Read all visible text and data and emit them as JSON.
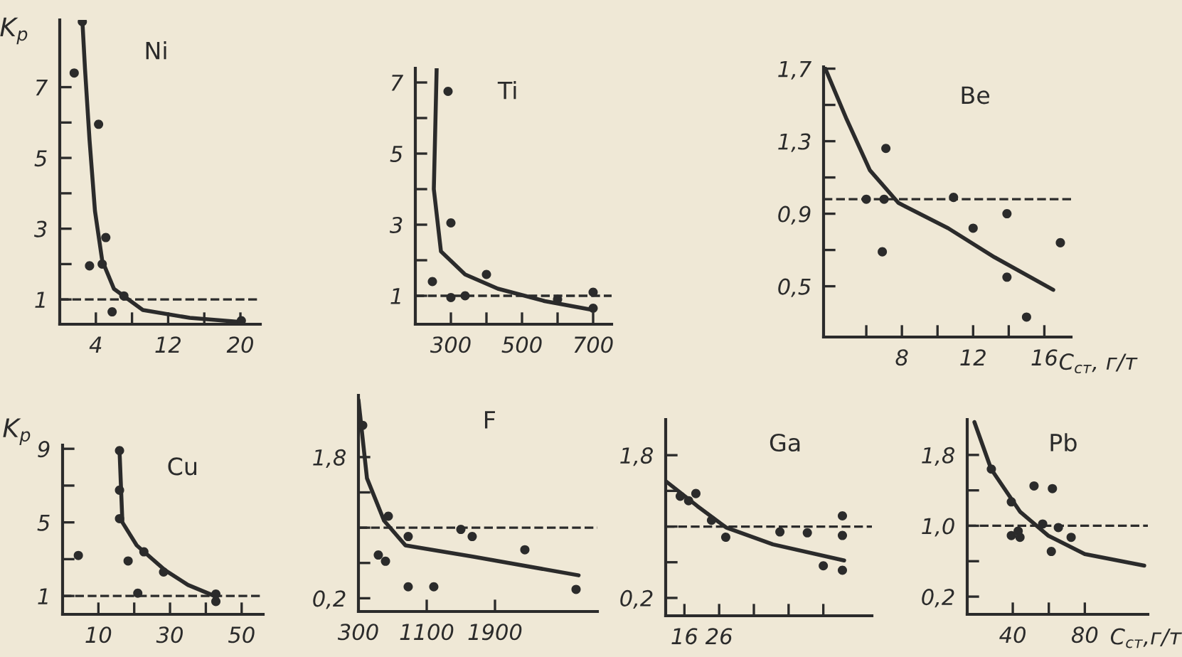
{
  "chart_data": [
    {
      "type": "scatter",
      "title": "Ni",
      "ylabel": "K$_{р}$",
      "grid": false,
      "xlim": [
        0,
        22.2
      ],
      "ylim": [
        0.3,
        8.9
      ],
      "xticks": [
        4,
        {
          "value": 8,
          "label": null
        },
        12,
        {
          "value": 16,
          "label": null
        },
        20
      ],
      "yticks": [
        1,
        {
          "value": 2,
          "label": null
        },
        3,
        {
          "value": 4,
          "label": null
        },
        5,
        {
          "value": 6,
          "label": null
        },
        7
      ],
      "series": [
        {
          "color": "#2b2b2b",
          "x": [
            1.6,
            2.5,
            4.3,
            5.1,
            3.3,
            4.7,
            7.1,
            5.8,
            20.1
          ],
          "values": [
            7.4,
            8.85,
            5.95,
            2.75,
            1.95,
            2.0,
            1.1,
            0.65,
            0.4
          ]
        },
        {
          "type": "line",
          "color": "#2b2b2b",
          "x": [
            2.5,
            2.8,
            3.3,
            3.9,
            4.7,
            6,
            9.2,
            14.4,
            20.2
          ],
          "values": [
            8.9,
            7.5,
            5.5,
            3.5,
            2.1,
            1.3,
            0.7,
            0.48,
            0.36
          ]
        }
      ],
      "ref_lines": [
        {
          "axis": "y",
          "value": 1,
          "line_style": "dashed",
          "color": "#2b2b2b"
        }
      ]
    },
    {
      "type": "scatter",
      "title": "Ti",
      "grid": false,
      "xlim": [
        200,
        752
      ],
      "ylim": [
        0.2,
        7.4
      ],
      "xticks": [
        300,
        {
          "value": 400,
          "label": null
        },
        500,
        {
          "value": 600,
          "label": null
        },
        700
      ],
      "yticks": [
        1,
        {
          "value": 2,
          "label": null
        },
        3,
        {
          "value": 4,
          "label": null
        },
        5,
        {
          "value": 6,
          "label": null
        },
        7
      ],
      "series": [
        {
          "color": "#2b2b2b",
          "x": [
            292,
            248,
            300,
            300,
            340,
            400,
            600,
            700,
            700
          ],
          "values": [
            6.75,
            1.4,
            3.05,
            0.95,
            1.0,
            1.6,
            0.9,
            1.1,
            0.65
          ]
        },
        {
          "type": "line",
          "color": "#2b2b2b",
          "x": [
            260,
            252,
            272,
            340,
            432,
            564,
            700
          ],
          "values": [
            7.4,
            4,
            2.25,
            1.6,
            1.2,
            0.85,
            0.6
          ]
        }
      ],
      "ref_lines": [
        {
          "axis": "y",
          "value": 1,
          "line_style": "dashed",
          "color": "#2b2b2b"
        }
      ]
    },
    {
      "type": "scatter",
      "title": "Be",
      "xlabel": "C$_{ст}$, г/т",
      "grid": false,
      "xlim": [
        3.6,
        17.5
      ],
      "ylim": [
        0.22,
        1.71
      ],
      "xticks": [
        {
          "value": 6,
          "label": null
        },
        8,
        {
          "value": 10,
          "label": null
        },
        12,
        {
          "value": 14,
          "label": null
        },
        16
      ],
      "yticks": [
        {
          "value": 1.7,
          "label": "1,7"
        },
        {
          "value": 1.5,
          "label": null
        },
        {
          "value": 1.3,
          "label": "1,3"
        },
        {
          "value": 1.1,
          "label": null
        },
        {
          "value": 0.9,
          "label": "0,9"
        },
        {
          "value": 0.7,
          "label": null
        },
        {
          "value": 0.5,
          "label": "0,5"
        }
      ],
      "series": [
        {
          "color": "#2b2b2b",
          "x": [
            6.0,
            7.0,
            7.1,
            6.9,
            10.9,
            12.0,
            13.9,
            13.9,
            15.0,
            16.9
          ],
          "values": [
            0.98,
            0.98,
            1.26,
            0.69,
            0.99,
            0.82,
            0.9,
            0.55,
            0.33,
            0.74
          ]
        },
        {
          "type": "line",
          "color": "#2b2b2b",
          "x": [
            3.7,
            4.9,
            6.2,
            7.8,
            10.6,
            13.2,
            16.5
          ],
          "values": [
            1.7,
            1.42,
            1.14,
            0.96,
            0.82,
            0.66,
            0.48
          ]
        }
      ],
      "ref_lines": [
        {
          "axis": "y",
          "value": 0.98,
          "line_style": "dashed",
          "color": "#2b2b2b"
        }
      ]
    },
    {
      "type": "scatter",
      "title": "Cu",
      "ylabel": "K$_{р}$",
      "grid": false,
      "xlim": [
        0,
        56
      ],
      "ylim": [
        0,
        9.2
      ],
      "xticks": [
        10,
        {
          "value": 20,
          "label": null
        },
        30,
        {
          "value": 40,
          "label": null
        },
        50
      ],
      "yticks": [
        1,
        {
          "value": 3,
          "label": null
        },
        5,
        {
          "value": 7,
          "label": null
        },
        9
      ],
      "series": [
        {
          "color": "#2b2b2b",
          "x": [
            4.4,
            15.9,
            15.9,
            15.9,
            18.3,
            22.7,
            21,
            28.2,
            42.8,
            42.8
          ],
          "values": [
            3.2,
            8.9,
            6.75,
            5.2,
            2.9,
            3.4,
            1.15,
            2.3,
            1.1,
            0.7
          ]
        },
        {
          "type": "line",
          "color": "#2b2b2b",
          "x": [
            15.9,
            16.7,
            20.7,
            28.6,
            35,
            42.4
          ],
          "values": [
            8.9,
            5,
            3.75,
            2.4,
            1.6,
            1.0
          ]
        }
      ],
      "ref_lines": [
        {
          "axis": "y",
          "value": 1,
          "line_style": "dashed",
          "color": "#2b2b2b"
        }
      ]
    },
    {
      "type": "scatter",
      "title": "F",
      "grid": false,
      "xlim": [
        300,
        3100
      ],
      "ylim": [
        0.05,
        2.5
      ],
      "xticks": [
        300,
        1100,
        1900
      ],
      "yticks": [
        {
          "value": 1.8,
          "label": "1,8"
        },
        {
          "value": 1.4,
          "label": null
        },
        {
          "value": 1.0,
          "label": null
        },
        {
          "value": 0.6,
          "label": null
        },
        {
          "value": 0.2,
          "label": "0,2"
        }
      ],
      "series": [
        {
          "color": "#2b2b2b",
          "x": [
            350,
            650,
            533,
            617,
            883,
            883,
            1183,
            1500,
            1633,
            2250,
            2850
          ],
          "values": [
            2.16,
            1.13,
            0.69,
            0.62,
            0.9,
            0.33,
            0.33,
            0.98,
            0.9,
            0.75,
            0.3
          ]
        },
        {
          "type": "line",
          "color": "#2b2b2b",
          "x": [
            300,
            400,
            600,
            850,
            1650,
            2880
          ],
          "values": [
            2.45,
            1.56,
            1.08,
            0.8,
            0.67,
            0.46
          ]
        }
      ],
      "ref_lines": [
        {
          "axis": "y",
          "value": 1.0,
          "line_style": "dashed",
          "color": "#2b2b2b"
        }
      ]
    },
    {
      "type": "scatter",
      "title": "Ga",
      "grid": false,
      "xlim": [
        10.6,
        70
      ],
      "ylim": [
        0,
        2.2
      ],
      "xticks": [
        16,
        26,
        {
          "value": 36,
          "label": null
        },
        {
          "value": 46,
          "label": null
        },
        {
          "value": 56,
          "label": null
        }
      ],
      "yticks": [
        {
          "value": 1.8,
          "label": "1,8"
        },
        {
          "value": 1.4,
          "label": null
        },
        {
          "value": 1.0,
          "label": null
        },
        {
          "value": 0.6,
          "label": null
        },
        {
          "value": 0.2,
          "label": "0,2"
        }
      ],
      "series": [
        {
          "color": "#2b2b2b",
          "x": [
            14.8,
            17.2,
            19.3,
            23.8,
            27.9,
            43.5,
            51.4,
            56,
            61.5,
            61.5,
            61.5
          ],
          "values": [
            1.34,
            1.29,
            1.37,
            1.07,
            0.88,
            0.94,
            0.93,
            0.56,
            1.12,
            0.9,
            0.51
          ]
        },
        {
          "type": "line",
          "color": "#2b2b2b",
          "x": [
            10.6,
            19.7,
            28,
            41.5,
            62
          ],
          "values": [
            1.51,
            1.23,
            0.99,
            0.8,
            0.62
          ]
        }
      ],
      "ref_lines": [
        {
          "axis": "y",
          "value": 1.0,
          "line_style": "dashed",
          "color": "#2b2b2b"
        }
      ]
    },
    {
      "type": "scatter",
      "title": "Pb",
      "xlabel": "C$_{ст}$,г/т",
      "grid": false,
      "xlim": [
        14.7,
        115
      ],
      "ylim": [
        0,
        2.2
      ],
      "xticks": [
        40,
        {
          "value": 60,
          "label": null
        },
        80
      ],
      "yticks": [
        {
          "value": 1.8,
          "label": "1,8"
        },
        {
          "value": 1.4,
          "label": null
        },
        {
          "value": 1.0,
          "label": "1,0"
        },
        {
          "value": 0.6,
          "label": null
        },
        {
          "value": 0.2,
          "label": "0,2"
        }
      ],
      "series": [
        {
          "color": "#2b2b2b",
          "x": [
            28.1,
            39.2,
            39.2,
            43,
            44,
            51.8,
            56.6,
            62,
            61.4,
            65.3,
            72.4
          ],
          "values": [
            1.64,
            1.27,
            0.89,
            0.94,
            0.87,
            1.45,
            1.02,
            1.42,
            0.71,
            0.98,
            0.87
          ]
        },
        {
          "type": "line",
          "color": "#2b2b2b",
          "x": [
            18.7,
            28,
            44,
            59.6,
            80,
            113
          ],
          "values": [
            2.17,
            1.64,
            1.16,
            0.89,
            0.68,
            0.55
          ]
        }
      ],
      "ref_lines": [
        {
          "axis": "y",
          "value": 1.0,
          "line_style": "dashed",
          "color": "#2b2b2b"
        }
      ]
    }
  ]
}
